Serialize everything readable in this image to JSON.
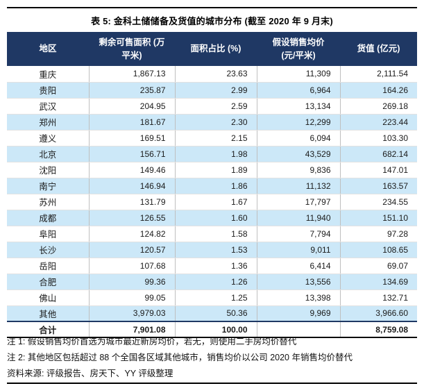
{
  "title": "表 5: 金科土储储备及货值的城市分布 (截至 2020 年 9 月末)",
  "table": {
    "headers": [
      "地区",
      "剩余可售面积 (万\n平米)",
      "面积占比 (%)",
      "假设销售均价\n(元/平米)",
      "货值 (亿元)"
    ],
    "rows": [
      [
        "重庆",
        "1,867.13",
        "23.63",
        "11,309",
        "2,111.54"
      ],
      [
        "贵阳",
        "235.87",
        "2.99",
        "6,964",
        "164.26"
      ],
      [
        "武汉",
        "204.95",
        "2.59",
        "13,134",
        "269.18"
      ],
      [
        "郑州",
        "181.67",
        "2.30",
        "12,299",
        "223.44"
      ],
      [
        "遵义",
        "169.51",
        "2.15",
        "6,094",
        "103.30"
      ],
      [
        "北京",
        "156.71",
        "1.98",
        "43,529",
        "682.14"
      ],
      [
        "沈阳",
        "149.46",
        "1.89",
        "9,836",
        "147.01"
      ],
      [
        "南宁",
        "146.94",
        "1.86",
        "11,132",
        "163.57"
      ],
      [
        "苏州",
        "131.79",
        "1.67",
        "17,797",
        "234.55"
      ],
      [
        "成都",
        "126.55",
        "1.60",
        "11,940",
        "151.10"
      ],
      [
        "阜阳",
        "124.82",
        "1.58",
        "7,794",
        "97.28"
      ],
      [
        "长沙",
        "120.57",
        "1.53",
        "9,011",
        "108.65"
      ],
      [
        "岳阳",
        "107.68",
        "1.36",
        "6,414",
        "69.07"
      ],
      [
        "合肥",
        "99.36",
        "1.26",
        "13,556",
        "134.69"
      ],
      [
        "佛山",
        "99.05",
        "1.25",
        "13,398",
        "132.71"
      ],
      [
        "其他",
        "3,979.03",
        "50.36",
        "9,969",
        "3,966.60"
      ]
    ],
    "total": [
      "合计",
      "7,901.08",
      "100.00",
      "",
      "8,759.08"
    ]
  },
  "notes": [
    "注 1: 假设销售均价首选为城市最近新房均价，若无，则使用二手房均价替代",
    "注 2: 其他地区包括超过 88 个全国各区域其他城市，销售均价以公司 2020 年销售均价替代"
  ],
  "source": "资料来源: 评级报告、房天下、YY 评级整理",
  "colors": {
    "header_bg": "#1F3864",
    "stripe_bg": "#CCE8F8",
    "rule": "#000000"
  }
}
